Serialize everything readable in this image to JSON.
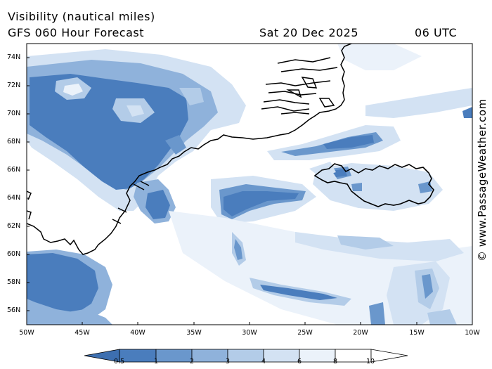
{
  "header": {
    "title": "Visibility (nautical miles)",
    "forecast": "GFS 060 Hour Forecast",
    "date": "Sat 20 Dec 2025",
    "time": "06 UTC"
  },
  "lat_labels": [
    "74N",
    "72N",
    "70N",
    "68N",
    "66N",
    "64N",
    "62N",
    "60N",
    "58N",
    "56N"
  ],
  "lon_labels": [
    "50W",
    "45W",
    "40W",
    "35W",
    "30W",
    "25W",
    "20W",
    "15W",
    "10W"
  ],
  "legend": {
    "labels": [
      "0.5",
      "1",
      "2",
      "3",
      "4",
      "6",
      "8",
      "10"
    ],
    "colors": [
      "#3d6fb0",
      "#4a7dbd",
      "#6a97cc",
      "#8fb2db",
      "#b3cce8",
      "#d3e2f3",
      "#ebf2fa",
      "#ffffff"
    ]
  },
  "credit": "© www.PassageWeather.com",
  "colors": {
    "coast": "#000000",
    "frame": "#000000"
  }
}
